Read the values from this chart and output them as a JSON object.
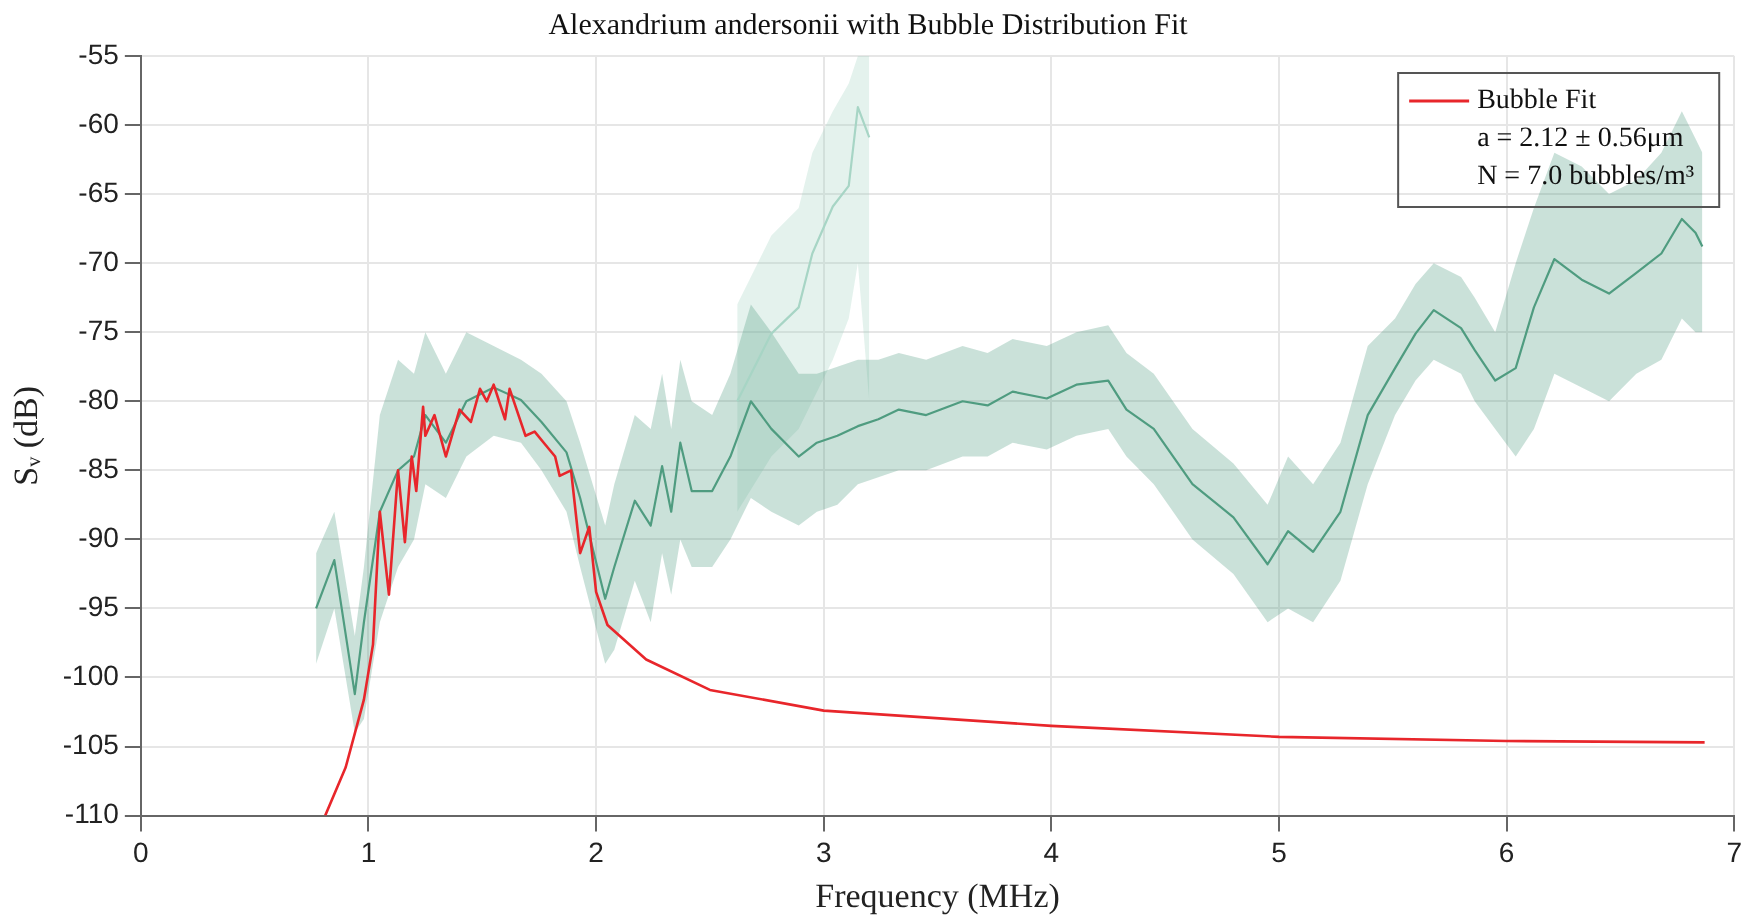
{
  "chart_data": {
    "type": "line",
    "title": "Alexandrium andersonii with Bubble Distribution Fit",
    "xlabel": "Frequency (MHz)",
    "ylabel": "Sᵥ (dB)",
    "xlim": [
      0,
      7
    ],
    "xticks": [
      0,
      1,
      2,
      3,
      4,
      5,
      6,
      7
    ],
    "ylim": [
      -110,
      -55
    ],
    "yticks": [
      -110,
      -105,
      -100,
      -95,
      -90,
      -85,
      -80,
      -75,
      -70,
      -65,
      -60,
      -55
    ],
    "grid": true,
    "legend": "top right",
    "marker": "none",
    "line_style": "solid",
    "annotations": [
      "a = 2.12 ± 0.56μm",
      "N = 7.0 bubbles/m³"
    ],
    "series": [
      {
        "color": "#4f9c80",
        "x": [
          0.77,
          0.85,
          0.94,
          0.98,
          1.05,
          1.13,
          1.2,
          1.25,
          1.34,
          1.43,
          1.55,
          1.67,
          1.76,
          1.87,
          1.93,
          2.04,
          2.08,
          2.17,
          2.24,
          2.29,
          2.33,
          2.37,
          2.42,
          2.51,
          2.59,
          2.68,
          2.77,
          2.89,
          2.97,
          3.06,
          3.15,
          3.24,
          3.33,
          3.45,
          3.61,
          3.72,
          3.83,
          3.98,
          4.11,
          4.25,
          4.33,
          4.45,
          4.62,
          4.8,
          4.95,
          5.04,
          5.15,
          5.27,
          5.39,
          5.51,
          5.6,
          5.68,
          5.8,
          5.86,
          5.95,
          6.04,
          6.12,
          6.21,
          6.33,
          6.45,
          6.57,
          6.68,
          6.77,
          6.83,
          6.86
        ],
        "values": [
          -95,
          -91.5,
          -101.2,
          -96,
          -88,
          -85,
          -84,
          -81,
          -83,
          -80,
          -79,
          -79.9,
          -81.5,
          -83.7,
          -87,
          -94.3,
          -92,
          -87.2,
          -89,
          -84.7,
          -88,
          -83,
          -86.5,
          -86.5,
          -84,
          -80,
          -82,
          -84,
          -83,
          -82.5,
          -81.8,
          -81.3,
          -80.6,
          -81,
          -80,
          -80.3,
          -79.3,
          -79.8,
          -78.8,
          -78.5,
          -80.6,
          -82,
          -86,
          -88.4,
          -91.8,
          -89.4,
          -90.9,
          -88,
          -81,
          -77.6,
          -75.1,
          -73.4,
          -74.7,
          -76.3,
          -78.5,
          -77.6,
          -73.2,
          -69.7,
          -71.2,
          -72.2,
          -70.7,
          -69.3,
          -66.8,
          -67.8,
          -68.8
        ],
        "lower": [
          -99,
          -95,
          -104,
          -103,
          -96,
          -92,
          -90,
          -86,
          -87,
          -84,
          -82.5,
          -83,
          -85,
          -88,
          -92,
          -99,
          -98,
          -93,
          -96,
          -91,
          -94,
          -90,
          -92,
          -92,
          -90,
          -87,
          -88,
          -89,
          -88,
          -87.5,
          -86,
          -85.5,
          -85,
          -85,
          -84,
          -84,
          -83,
          -83.5,
          -82.5,
          -82,
          -84,
          -86,
          -90,
          -92.5,
          -96,
          -95,
          -96,
          -93,
          -86,
          -81,
          -78.5,
          -77,
          -78,
          -80,
          -82,
          -84,
          -82,
          -78,
          -79,
          -80,
          -78,
          -77,
          -74,
          -75,
          -75
        ],
        "upper": [
          -91,
          -88,
          -97,
          -92,
          -81,
          -77,
          -78,
          -75,
          -78,
          -75,
          -76,
          -77,
          -78,
          -80,
          -83,
          -89,
          -86,
          -81,
          -82,
          -78,
          -82,
          -77,
          -80,
          -81,
          -78,
          -73,
          -75,
          -78,
          -78,
          -77.5,
          -77,
          -77,
          -76.5,
          -77,
          -76,
          -76.5,
          -75.5,
          -76,
          -75,
          -74.5,
          -76.5,
          -78,
          -82,
          -84.5,
          -87.5,
          -84,
          -86,
          -83,
          -76,
          -74,
          -71.5,
          -70,
          -71,
          -72.5,
          -75,
          -70,
          -66,
          -62,
          -63,
          -65,
          -64,
          -62,
          -59,
          -61,
          -62
        ]
      },
      {
        "color": "#a7d5c5",
        "x": [
          2.62,
          2.77,
          2.89,
          2.95,
          3.04,
          3.11,
          3.15,
          3.2
        ],
        "values": [
          -80,
          -75.1,
          -73.2,
          -69.3,
          -65.9,
          -64.4,
          -58.7,
          -60.9
        ],
        "lower": [
          -88,
          -84,
          -82,
          -80,
          -77,
          -74,
          -70,
          -80
        ],
        "upper": [
          -73,
          -68,
          -66,
          -62,
          -59,
          -57,
          -55,
          -55
        ]
      },
      {
        "name": "Bubble Fit",
        "color": "#e8262b",
        "x": [
          0.81,
          0.9,
          0.98,
          1.02,
          1.05,
          1.09,
          1.13,
          1.16,
          1.19,
          1.21,
          1.24,
          1.25,
          1.29,
          1.34,
          1.4,
          1.45,
          1.49,
          1.52,
          1.55,
          1.6,
          1.62,
          1.69,
          1.73,
          1.77,
          1.82,
          1.84,
          1.89,
          1.93,
          1.97,
          2.0,
          2.05,
          2.22,
          2.5,
          3,
          4,
          5,
          6,
          6.87
        ],
        "values": [
          -110,
          -106.5,
          -101.6,
          -97.6,
          -88,
          -94,
          -85,
          -90.2,
          -84,
          -86.5,
          -80.4,
          -82.5,
          -81,
          -84,
          -80.6,
          -81.5,
          -79.1,
          -80,
          -78.8,
          -81.3,
          -79.1,
          -82.5,
          -82.2,
          -83,
          -84,
          -85.4,
          -85,
          -91,
          -89.1,
          -93.8,
          -96.2,
          -98.7,
          -100.9,
          -102.4,
          -103.5,
          -104.3,
          -104.6,
          -104.7
        ]
      }
    ]
  }
}
